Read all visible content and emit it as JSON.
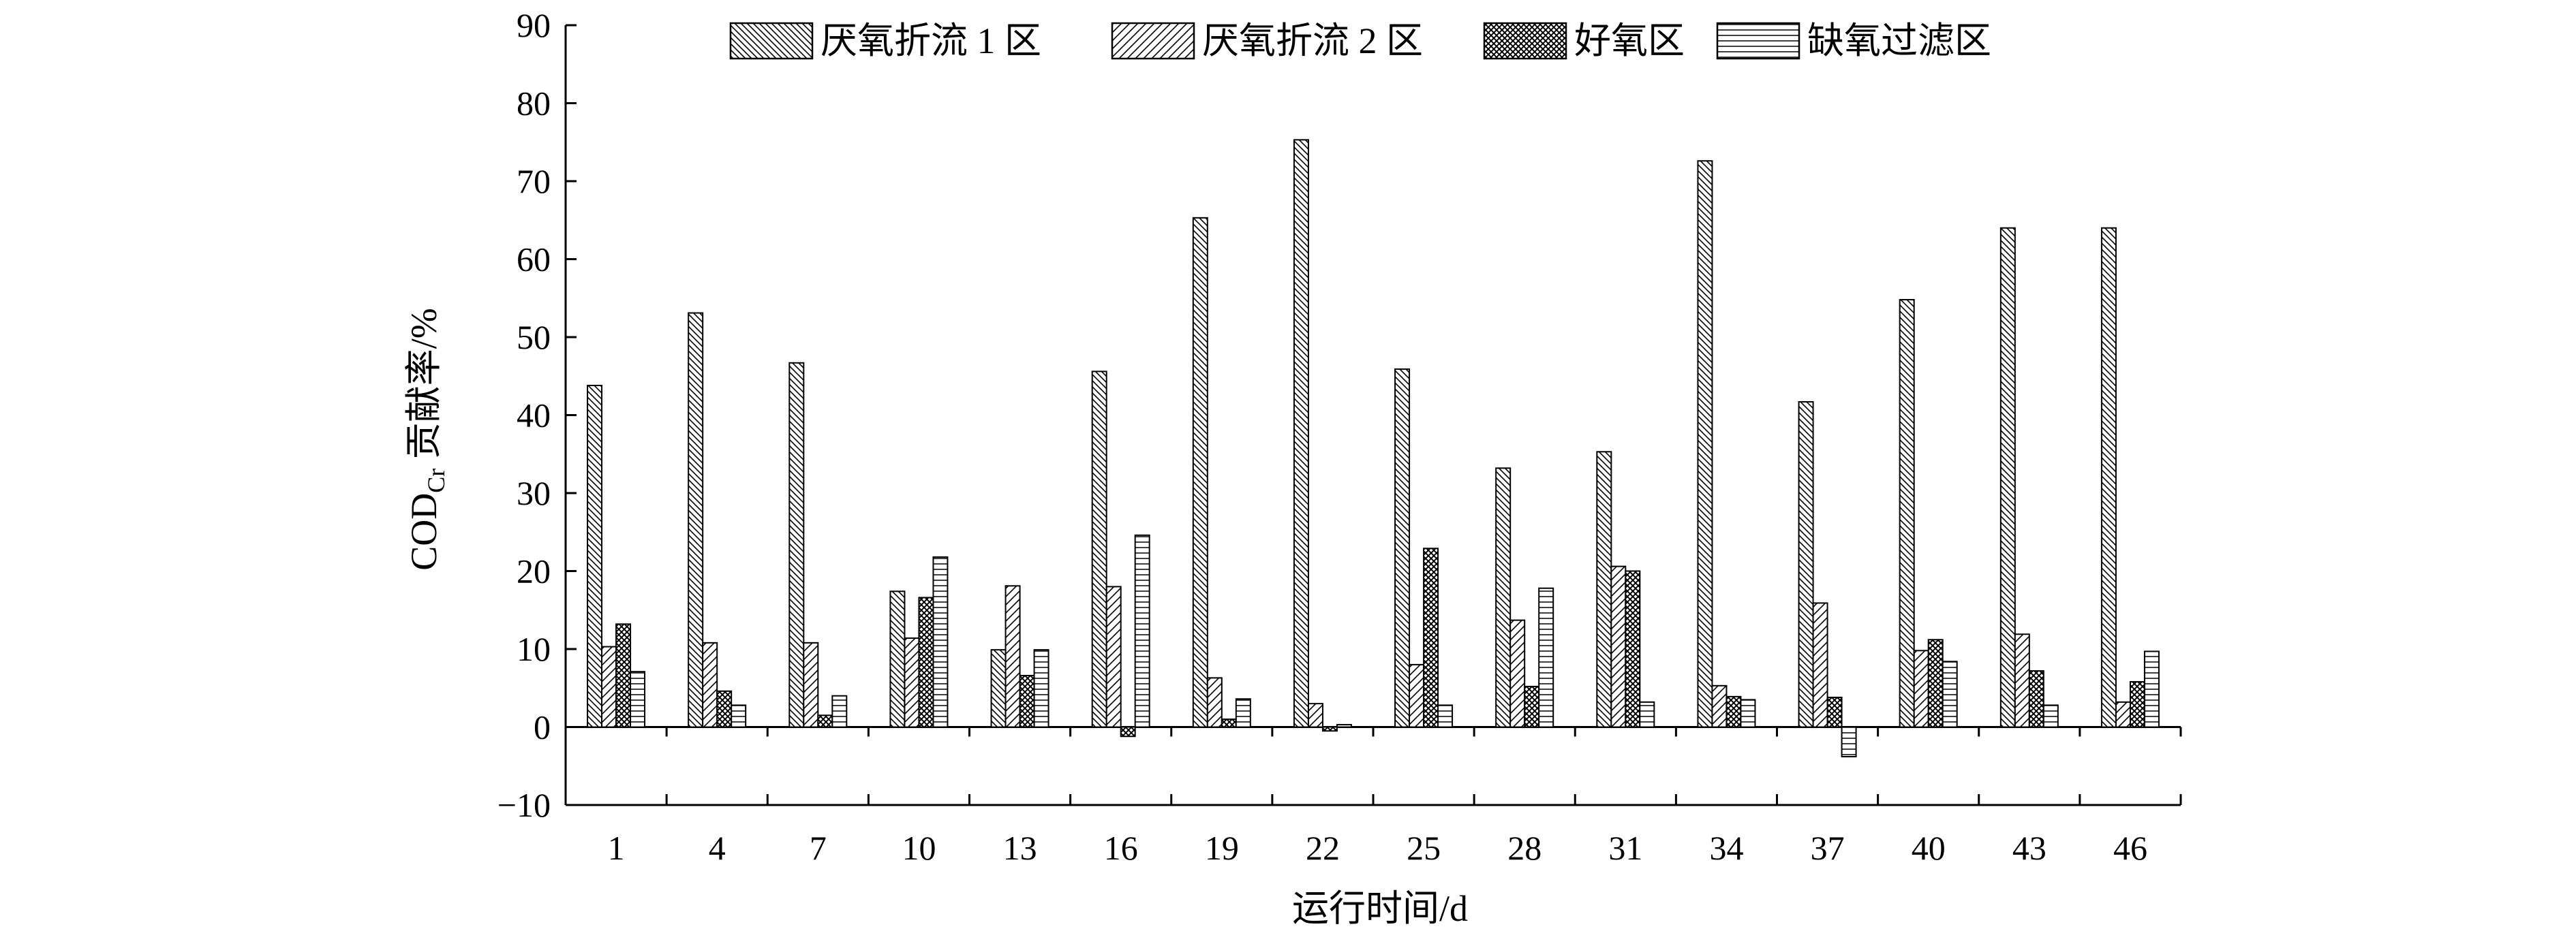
{
  "chart_data": {
    "type": "bar",
    "title": "",
    "xlabel": "运行时间/d",
    "ylabel": "CODCr 贡献率/%",
    "ylabel_parts": {
      "main": "COD",
      "sub": "Cr",
      "rest": " 贡献率/%"
    },
    "ylim": [
      -10,
      90
    ],
    "yticks": [
      "−10",
      "0",
      "10",
      "20",
      "30",
      "40",
      "50",
      "60",
      "70",
      "80",
      "90"
    ],
    "ytick_values": [
      -10,
      0,
      10,
      20,
      30,
      40,
      50,
      60,
      70,
      80,
      90
    ],
    "grid": false,
    "legend_position": "top",
    "categories": [
      "1",
      "4",
      "7",
      "10",
      "13",
      "16",
      "19",
      "22",
      "25",
      "28",
      "31",
      "34",
      "37",
      "40",
      "43",
      "46"
    ],
    "series": [
      {
        "name": "厌氧折流 1 区",
        "pattern": "back-diagonal",
        "values": [
          43.8,
          53.1,
          46.7,
          17.4,
          9.9,
          45.6,
          65.3,
          75.3,
          45.9,
          33.2,
          35.3,
          72.6,
          41.7,
          54.8,
          64.0,
          64.0
        ]
      },
      {
        "name": "厌氧折流 2 区",
        "pattern": "forward-diagonal",
        "values": [
          10.3,
          10.8,
          10.8,
          11.4,
          18.1,
          18.0,
          6.3,
          3.0,
          8.0,
          13.7,
          20.6,
          5.3,
          15.9,
          9.8,
          11.9,
          3.2
        ]
      },
      {
        "name": "好氧区",
        "pattern": "crosshatch",
        "values": [
          13.2,
          4.6,
          1.5,
          16.6,
          6.6,
          -1.2,
          1.0,
          -0.5,
          22.9,
          5.2,
          20.0,
          3.9,
          3.8,
          11.2,
          7.2,
          5.8
        ]
      },
      {
        "name": "缺氧过滤区",
        "pattern": "horizontal",
        "values": [
          7.1,
          2.8,
          4.0,
          21.8,
          9.9,
          24.6,
          3.6,
          0.3,
          2.8,
          17.8,
          3.2,
          3.5,
          -3.8,
          8.4,
          2.8,
          9.7
        ]
      }
    ]
  }
}
